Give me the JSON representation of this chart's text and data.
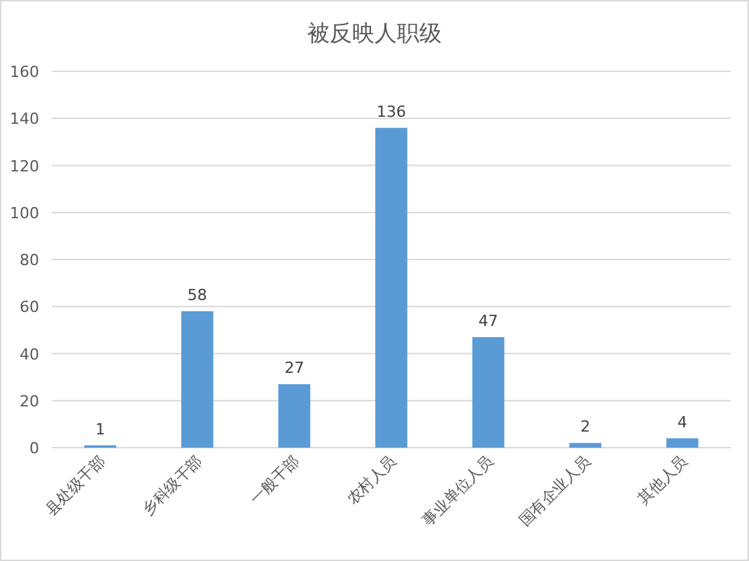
{
  "chart_data": {
    "type": "bar",
    "title": "被反映人职级",
    "categories": [
      "县处级干部",
      "乡科级干部",
      "一般干部",
      "农村人员",
      "事业单位人员",
      "国有企业人员",
      "其他人员"
    ],
    "values": [
      1,
      58,
      27,
      136,
      47,
      2,
      4
    ],
    "color": "#5b9bd5",
    "ylim": [
      0,
      160
    ],
    "yticks": [
      0,
      20,
      40,
      60,
      80,
      100,
      120,
      140,
      160
    ],
    "grid": "y",
    "data_labels": true
  }
}
